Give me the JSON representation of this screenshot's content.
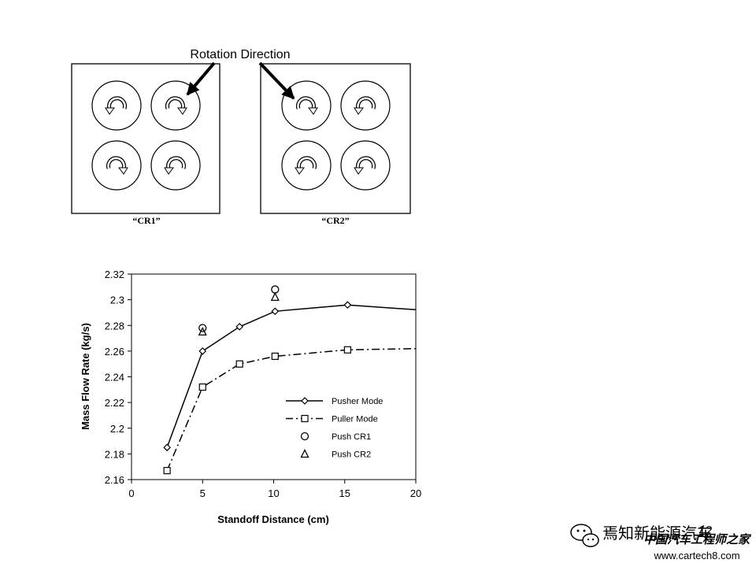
{
  "diagram": {
    "annotation": "Rotation Direction",
    "panels": [
      {
        "label": "“CR1”",
        "rotors": [
          "ccw",
          "cw",
          "cw",
          "ccw"
        ]
      },
      {
        "label": "“CR2”",
        "rotors": [
          "cw",
          "ccw",
          "ccw",
          "ccw"
        ]
      }
    ]
  },
  "chart_data": {
    "type": "line",
    "xlabel": "Standoff Distance (cm)",
    "ylabel": "Mass Flow Rate (kg/s)",
    "xlim": [
      0,
      20
    ],
    "ylim": [
      2.16,
      2.32
    ],
    "xticks": [
      0,
      5,
      10,
      15,
      20
    ],
    "xtick_labels": [
      "0",
      "5",
      "10",
      "15",
      "20"
    ],
    "yticks": [
      2.16,
      2.18,
      2.2,
      2.22,
      2.24,
      2.26,
      2.28,
      2.3,
      2.32
    ],
    "ytick_labels": [
      "2.16",
      "2.18",
      "2.2",
      "2.22",
      "2.24",
      "2.26",
      "2.28",
      "2.3",
      "2.32"
    ],
    "grid": false,
    "legend_position": "bottom-right",
    "series": [
      {
        "name": "Pusher Mode",
        "marker": "diamond",
        "line": "solid",
        "x": [
          2.5,
          5.0,
          7.6,
          10.1,
          15.2,
          20.3
        ],
        "y": [
          2.185,
          2.26,
          2.279,
          2.291,
          2.296,
          2.292
        ]
      },
      {
        "name": "Puller Mode",
        "marker": "square",
        "line": "dash-dot",
        "x": [
          2.5,
          5.0,
          7.6,
          10.1,
          15.2,
          20.3
        ],
        "y": [
          2.167,
          2.232,
          2.25,
          2.256,
          2.261,
          2.262
        ]
      },
      {
        "name": "Push CR1",
        "marker": "circle",
        "line": "none",
        "x": [
          5.0,
          10.1
        ],
        "y": [
          2.278,
          2.308
        ]
      },
      {
        "name": "Push CR2",
        "marker": "triangle",
        "line": "none",
        "x": [
          5.0,
          10.1
        ],
        "y": [
          2.275,
          2.302
        ]
      }
    ]
  },
  "footer": {
    "page_number": "12",
    "watermark_account": "焉知新能源汽车",
    "watermark_site_name": "中国汽车工程师之家",
    "watermark_url": "www.cartech8.com"
  }
}
